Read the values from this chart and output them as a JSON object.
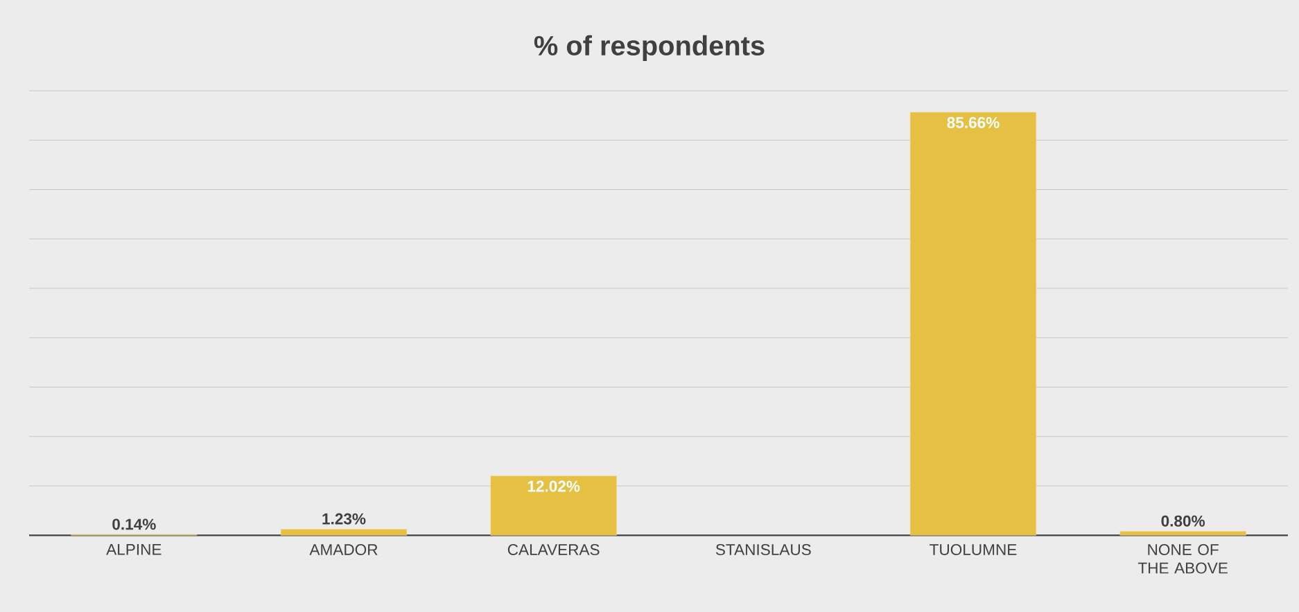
{
  "chart_data": {
    "type": "bar",
    "title": "% of respondents",
    "categories": [
      "ALPINE",
      "AMADOR",
      "CALAVERAS",
      "STANISLAUS",
      "TUOLUMNE",
      "NONE OF THE ABOVE"
    ],
    "values": [
      0.14,
      1.23,
      12.02,
      null,
      85.66,
      0.8
    ],
    "value_labels": [
      "0.14%",
      "1.23%",
      "12.02%",
      null,
      "85.66%",
      "0.80%"
    ],
    "color": "#e6c042",
    "ylim": [
      0,
      90
    ],
    "yticks": [
      {
        "value": 0,
        "label": null
      },
      {
        "value": 10,
        "label": null
      },
      {
        "value": 20,
        "label": null
      },
      {
        "value": 30,
        "label": null
      },
      {
        "value": 40,
        "label": null
      },
      {
        "value": 50,
        "label": null
      },
      {
        "value": 60,
        "label": null
      },
      {
        "value": 70,
        "label": null
      },
      {
        "value": 80,
        "label": null
      },
      {
        "value": 90,
        "label": null
      }
    ],
    "tick_labels": "x",
    "grid": "y"
  }
}
